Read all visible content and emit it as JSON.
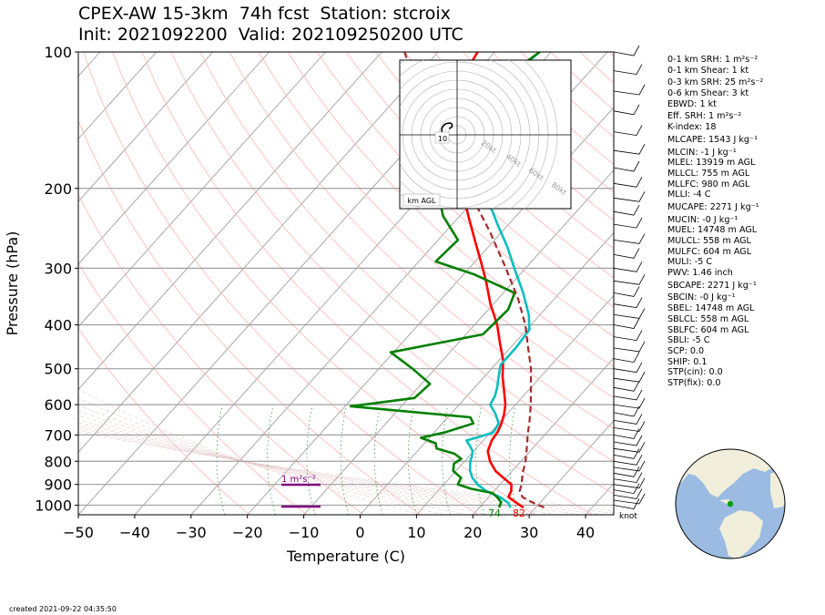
{
  "title": {
    "line1": "CPEX-AW 15-3km  74h fcst  Station: stcroix",
    "line2": "Init: 2021092200  Valid: 202109250200 UTC"
  },
  "footer": "created 2021-09-22 04:35:50",
  "indices": [
    "0-1 km SRH: 1 m²s⁻²",
    "0-1 km Shear: 1 kt",
    "0-3 km SRH: 25 m²s⁻²",
    "0-6 km Shear: 3 kt",
    "EBWD: 1 kt",
    "Eff. SRH: 1 m²s⁻²",
    "K-index: 18",
    "MLCAPE: 1543 J kg⁻¹",
    "MLCIN: -1 J kg⁻¹",
    "MLEL: 13919 m AGL",
    "MLLCL: 755 m AGL",
    "MLLFC: 980 m AGL",
    "MLLI: -4 C",
    "MUCAPE: 2271 J kg⁻¹",
    "MUCIN: -0 J kg⁻¹",
    "MUEL: 14748 m AGL",
    "MULCL: 558 m AGL",
    "MULFC: 604 m AGL",
    "MULI: -5 C",
    "PWV: 1.46 inch",
    "SBCAPE: 2271 J kg⁻¹",
    "SBCIN: -0 J kg⁻¹",
    "SBEL: 14748 m AGL",
    "SBLCL: 558 m AGL",
    "SBLFC: 604 m AGL",
    "SBLI: -5 C",
    "SCP: 0.0",
    "SHIP: 0.1",
    "STP(cin): 0.0",
    "STP(fix): 0.0"
  ],
  "hodograph": {
    "ring_labels": [
      "20kt",
      "40kt",
      "60kt",
      "80kt"
    ],
    "height_label": "10",
    "corner_label": "km AGL",
    "color": "#000000"
  },
  "srh_bar": {
    "label": "1 m²s⁻²",
    "color": "#800080"
  },
  "barb_unit_label": "knot",
  "globe": {
    "ocean_color": "#9bbbe3",
    "land_color": "#f1efdc",
    "station_color": "#00a000"
  },
  "chart_data": {
    "type": "line",
    "chart_kind": "skew-T log-p sounding",
    "xlabel": "Temperature (C)",
    "ylabel": "Pressure (hPa)",
    "xlim": [
      -50,
      45
    ],
    "ylim": [
      1050,
      100
    ],
    "y_scale": "log",
    "x_ticks": [
      -50,
      -40,
      -30,
      -20,
      -10,
      0,
      10,
      20,
      30,
      40
    ],
    "y_ticks": [
      100,
      200,
      300,
      400,
      500,
      600,
      700,
      800,
      900,
      1000
    ],
    "surface_labels": {
      "dewpoint": "74",
      "temperature": "82"
    },
    "series": [
      {
        "color": "#ff0000",
        "values": [
          [
            1012,
            27.8
          ],
          [
            990,
            26.0
          ],
          [
            960,
            23.5
          ],
          [
            930,
            23.0
          ],
          [
            900,
            22.0
          ],
          [
            870,
            19.5
          ],
          [
            840,
            17.0
          ],
          [
            800,
            14.5
          ],
          [
            760,
            12.5
          ],
          [
            720,
            11.5
          ],
          [
            690,
            11.2
          ],
          [
            660,
            10.5
          ],
          [
            630,
            9.5
          ],
          [
            600,
            8.2
          ],
          [
            560,
            5.8
          ],
          [
            520,
            3.2
          ],
          [
            480,
            0.8
          ],
          [
            440,
            -2.5
          ],
          [
            400,
            -6.0
          ],
          [
            360,
            -10.5
          ],
          [
            320,
            -15.0
          ],
          [
            290,
            -19.0
          ],
          [
            260,
            -23.5
          ],
          [
            230,
            -28.5
          ],
          [
            200,
            -34.0
          ],
          [
            180,
            -38.0
          ],
          [
            160,
            -42.5
          ],
          [
            150,
            -45.5
          ],
          [
            135,
            -49.0
          ],
          [
            120,
            -51.0
          ],
          [
            110,
            -52.0
          ],
          [
            100,
            -53.0
          ]
        ]
      },
      {
        "color": "#0abfbf",
        "values": [
          [
            1012,
            25.5
          ],
          [
            990,
            24.5
          ],
          [
            960,
            22.0
          ],
          [
            930,
            18.5
          ],
          [
            900,
            16.0
          ],
          [
            870,
            14.0
          ],
          [
            840,
            12.5
          ],
          [
            800,
            11.0
          ],
          [
            780,
            10.5
          ],
          [
            760,
            9.8
          ],
          [
            740,
            8.5
          ],
          [
            720,
            7.0
          ],
          [
            705,
            9.0
          ],
          [
            690,
            10.5
          ],
          [
            660,
            10.0
          ],
          [
            630,
            8.0
          ],
          [
            600,
            5.5
          ],
          [
            575,
            5.0
          ],
          [
            550,
            4.0
          ],
          [
            520,
            2.5
          ],
          [
            490,
            1.0
          ],
          [
            450,
            1.0
          ],
          [
            410,
            0.5
          ],
          [
            380,
            -2.0
          ],
          [
            340,
            -6.5
          ],
          [
            300,
            -12.0
          ],
          [
            270,
            -16.5
          ],
          [
            240,
            -22.0
          ],
          [
            210,
            -28.0
          ],
          [
            180,
            -34.0
          ],
          [
            160,
            -39.0
          ],
          [
            140,
            -42.0
          ],
          [
            125,
            -43.5
          ],
          [
            110,
            -43.0
          ],
          [
            100,
            -42.0
          ]
        ]
      },
      {
        "color": "#008000",
        "values": [
          [
            1012,
            23.5
          ],
          [
            985,
            23.0
          ],
          [
            960,
            21.5
          ],
          [
            940,
            20.0
          ],
          [
            920,
            15.5
          ],
          [
            900,
            12.5
          ],
          [
            870,
            12.0
          ],
          [
            840,
            9.5
          ],
          [
            810,
            8.5
          ],
          [
            790,
            9.0
          ],
          [
            770,
            7.0
          ],
          [
            750,
            3.0
          ],
          [
            730,
            2.0
          ],
          [
            710,
            -1.5
          ],
          [
            690,
            2.0
          ],
          [
            660,
            5.5
          ],
          [
            640,
            4.0
          ],
          [
            605,
            -19.0
          ],
          [
            580,
            -9.0
          ],
          [
            540,
            -8.5
          ],
          [
            500,
            -14.0
          ],
          [
            460,
            -20.5
          ],
          [
            420,
            -7.0
          ],
          [
            370,
            -6.5
          ],
          [
            340,
            -8.0
          ],
          [
            310,
            -18.0
          ],
          [
            290,
            -27.0
          ],
          [
            260,
            -26.5
          ],
          [
            230,
            -33.0
          ],
          [
            210,
            -36.5
          ],
          [
            195,
            -37.5
          ],
          [
            180,
            -41.0
          ],
          [
            170,
            -43.5
          ],
          [
            155,
            -42.0
          ],
          [
            140,
            -43.5
          ],
          [
            120,
            -44.0
          ],
          [
            110,
            -43.5
          ],
          [
            100,
            -42.0
          ]
        ]
      },
      {
        "color": "#a52a2a",
        "dashed": true,
        "values": [
          [
            1012,
            31.5
          ],
          [
            990,
            29.0
          ],
          [
            960,
            26.0
          ],
          [
            930,
            24.5
          ],
          [
            900,
            23.8
          ],
          [
            850,
            22.2
          ],
          [
            800,
            20.8
          ],
          [
            750,
            19.0
          ],
          [
            700,
            17.0
          ],
          [
            650,
            15.0
          ],
          [
            600,
            12.7
          ],
          [
            550,
            10.0
          ],
          [
            500,
            7.0
          ],
          [
            450,
            3.2
          ],
          [
            400,
            -1.0
          ],
          [
            350,
            -6.5
          ],
          [
            300,
            -13.5
          ],
          [
            250,
            -22.0
          ],
          [
            200,
            -33.0
          ],
          [
            150,
            -47.0
          ],
          [
            120,
            -58.0
          ],
          [
            100,
            -66.0
          ]
        ]
      }
    ],
    "isotherm_color": "#a0a0a0",
    "dry_adiabat_color": "#ffb4b4",
    "mixing_ratio_color": "#228b22"
  }
}
